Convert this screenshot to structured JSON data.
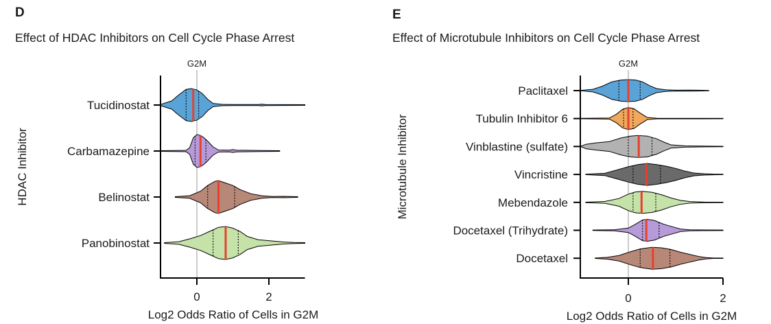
{
  "colors": {
    "median": "#e8402c",
    "reference_line": "#9a9a9a",
    "axis": "#000000"
  },
  "chart_data": [
    {
      "panel": "D",
      "type": "violin",
      "title": "Effect of HDAC Inhibitors on Cell Cycle Phase Arrest",
      "xlabel": "Log2 Odds Ratio of Cells in G2M",
      "ylabel": "HDAC Inhibitor",
      "reference_line": {
        "x": 0,
        "label": "G2M"
      },
      "xlim": [
        -1,
        3
      ],
      "xticks": [
        0,
        2
      ],
      "xtick_labels": [
        "0",
        "2"
      ],
      "grid": false,
      "series": [
        {
          "name": "Tucidinostat",
          "color": "#5aa3d6",
          "min": -1.0,
          "q1": -0.3,
          "median": -0.1,
          "q3": 0.05,
          "max": 3.0,
          "density": [
            [
              -1.0,
              0.04
            ],
            [
              -0.7,
              0.25
            ],
            [
              -0.5,
              0.62
            ],
            [
              -0.3,
              0.95
            ],
            [
              -0.15,
              1.0
            ],
            [
              0.0,
              0.92
            ],
            [
              0.15,
              0.7
            ],
            [
              0.3,
              0.35
            ],
            [
              0.45,
              0.1
            ],
            [
              0.7,
              0.04
            ],
            [
              1.0,
              0.03
            ],
            [
              1.7,
              0.03
            ],
            [
              1.8,
              0.05
            ],
            [
              1.9,
              0.03
            ],
            [
              3.0,
              0.02
            ]
          ]
        },
        {
          "name": "Carbamazepine",
          "color": "#b79bd8",
          "min": -1.0,
          "q1": -0.05,
          "median": 0.1,
          "q3": 0.25,
          "max": 2.3,
          "density": [
            [
              -1.0,
              0.02
            ],
            [
              -0.3,
              0.04
            ],
            [
              -0.2,
              0.2
            ],
            [
              -0.1,
              0.8
            ],
            [
              0.0,
              1.0
            ],
            [
              0.1,
              0.95
            ],
            [
              0.2,
              0.8
            ],
            [
              0.3,
              0.6
            ],
            [
              0.45,
              0.25
            ],
            [
              0.6,
              0.06
            ],
            [
              0.9,
              0.05
            ],
            [
              1.0,
              0.09
            ],
            [
              1.1,
              0.05
            ],
            [
              2.3,
              0.02
            ]
          ]
        },
        {
          "name": "Belinostat",
          "color": "#b78878",
          "min": -0.6,
          "q1": 0.3,
          "median": 0.6,
          "q3": 1.05,
          "max": 2.8,
          "density": [
            [
              -0.6,
              0.02
            ],
            [
              -0.2,
              0.08
            ],
            [
              0.1,
              0.35
            ],
            [
              0.3,
              0.7
            ],
            [
              0.5,
              0.95
            ],
            [
              0.6,
              1.0
            ],
            [
              0.8,
              0.85
            ],
            [
              1.0,
              0.7
            ],
            [
              1.2,
              0.45
            ],
            [
              1.5,
              0.2
            ],
            [
              1.8,
              0.08
            ],
            [
              2.1,
              0.03
            ],
            [
              2.4,
              0.04
            ],
            [
              2.8,
              0.02
            ]
          ]
        },
        {
          "name": "Panobinostat",
          "color": "#c5e2a9",
          "min": -0.9,
          "q1": 0.45,
          "median": 0.8,
          "q3": 1.15,
          "max": 3.0,
          "density": [
            [
              -0.9,
              0.02
            ],
            [
              -0.5,
              0.08
            ],
            [
              -0.2,
              0.25
            ],
            [
              0.1,
              0.45
            ],
            [
              0.4,
              0.75
            ],
            [
              0.6,
              0.95
            ],
            [
              0.8,
              1.0
            ],
            [
              1.0,
              0.9
            ],
            [
              1.2,
              0.7
            ],
            [
              1.4,
              0.4
            ],
            [
              1.7,
              0.2
            ],
            [
              2.1,
              0.12
            ],
            [
              2.4,
              0.06
            ],
            [
              2.7,
              0.03
            ],
            [
              3.0,
              0.02
            ]
          ]
        }
      ]
    },
    {
      "panel": "E",
      "type": "violin",
      "title": "Effect of Microtubule Inhibitors on Cell Cycle Phase Arrest",
      "xlabel": "Log2 Odds Ratio of Cells in G2M",
      "ylabel": "Microtubule Inhibitor",
      "reference_line": {
        "x": 0,
        "label": "G2M"
      },
      "xlim": [
        -1,
        2
      ],
      "xticks": [
        0,
        2
      ],
      "xtick_labels": [
        "0",
        "2"
      ],
      "grid": false,
      "series": [
        {
          "name": "Paclitaxel",
          "color": "#5aa3d6",
          "min": -1.0,
          "q1": -0.2,
          "median": 0.0,
          "q3": 0.25,
          "max": 1.7,
          "density": [
            [
              -1.0,
              0.02
            ],
            [
              -0.75,
              0.12
            ],
            [
              -0.55,
              0.4
            ],
            [
              -0.35,
              0.8
            ],
            [
              -0.15,
              0.97
            ],
            [
              0.0,
              1.0
            ],
            [
              0.15,
              0.97
            ],
            [
              0.3,
              0.8
            ],
            [
              0.45,
              0.45
            ],
            [
              0.6,
              0.18
            ],
            [
              0.8,
              0.07
            ],
            [
              1.0,
              0.04
            ],
            [
              1.3,
              0.05
            ],
            [
              1.7,
              0.02
            ]
          ]
        },
        {
          "name": "Tubulin Inhibitor 6",
          "color": "#f0a85e",
          "min": -1.0,
          "q1": -0.1,
          "median": 0.0,
          "q3": 0.1,
          "max": 2.0,
          "density": [
            [
              -1.0,
              0.02
            ],
            [
              -0.4,
              0.05
            ],
            [
              -0.25,
              0.4
            ],
            [
              -0.12,
              0.85
            ],
            [
              0.0,
              1.0
            ],
            [
              0.12,
              0.9
            ],
            [
              0.25,
              0.5
            ],
            [
              0.4,
              0.1
            ],
            [
              0.6,
              0.03
            ],
            [
              2.0,
              0.02
            ]
          ]
        },
        {
          "name": "Vinblastine (sulfate)",
          "color": "#b2b2b2",
          "min": -1.0,
          "q1": 0.0,
          "median": 0.22,
          "q3": 0.5,
          "max": 2.0,
          "density": [
            [
              -1.0,
              0.02
            ],
            [
              -0.9,
              0.2
            ],
            [
              -0.7,
              0.32
            ],
            [
              -0.4,
              0.45
            ],
            [
              -0.15,
              0.78
            ],
            [
              0.05,
              0.95
            ],
            [
              0.2,
              1.0
            ],
            [
              0.4,
              0.95
            ],
            [
              0.6,
              0.7
            ],
            [
              0.75,
              0.4
            ],
            [
              0.9,
              0.15
            ],
            [
              1.2,
              0.06
            ],
            [
              1.5,
              0.04
            ],
            [
              2.0,
              0.02
            ]
          ]
        },
        {
          "name": "Vincristine",
          "color": "#6a6a6a",
          "min": -0.9,
          "q1": 0.1,
          "median": 0.38,
          "q3": 0.68,
          "max": 2.0,
          "density": [
            [
              -0.9,
              0.02
            ],
            [
              -0.5,
              0.1
            ],
            [
              -0.25,
              0.4
            ],
            [
              0.0,
              0.7
            ],
            [
              0.2,
              0.9
            ],
            [
              0.4,
              1.0
            ],
            [
              0.6,
              0.9
            ],
            [
              0.8,
              0.75
            ],
            [
              1.0,
              0.55
            ],
            [
              1.2,
              0.3
            ],
            [
              1.4,
              0.12
            ],
            [
              1.6,
              0.06
            ],
            [
              1.8,
              0.03
            ],
            [
              2.0,
              0.02
            ]
          ]
        },
        {
          "name": "Mebendazole",
          "color": "#c5e2a9",
          "min": -0.9,
          "q1": 0.1,
          "median": 0.28,
          "q3": 0.58,
          "max": 2.0,
          "density": [
            [
              -0.9,
              0.02
            ],
            [
              -0.5,
              0.08
            ],
            [
              -0.2,
              0.35
            ],
            [
              0.0,
              0.75
            ],
            [
              0.15,
              0.95
            ],
            [
              0.3,
              1.0
            ],
            [
              0.5,
              0.92
            ],
            [
              0.7,
              0.7
            ],
            [
              0.9,
              0.4
            ],
            [
              1.1,
              0.18
            ],
            [
              1.3,
              0.07
            ],
            [
              1.6,
              0.03
            ],
            [
              2.0,
              0.02
            ]
          ]
        },
        {
          "name": "Docetaxel (Trihydrate)",
          "color": "#b79bd8",
          "min": -0.75,
          "q1": 0.3,
          "median": 0.38,
          "q3": 0.65,
          "max": 2.0,
          "density": [
            [
              -0.75,
              0.02
            ],
            [
              -0.3,
              0.05
            ],
            [
              0.0,
              0.2
            ],
            [
              0.15,
              0.55
            ],
            [
              0.3,
              0.95
            ],
            [
              0.4,
              1.0
            ],
            [
              0.55,
              0.9
            ],
            [
              0.75,
              0.55
            ],
            [
              0.95,
              0.3
            ],
            [
              1.1,
              0.12
            ],
            [
              1.3,
              0.05
            ],
            [
              1.6,
              0.03
            ],
            [
              2.0,
              0.02
            ]
          ]
        },
        {
          "name": "Docetaxel",
          "color": "#b78878",
          "min": -0.7,
          "q1": 0.25,
          "median": 0.52,
          "q3": 0.88,
          "max": 2.0,
          "density": [
            [
              -0.7,
              0.02
            ],
            [
              -0.45,
              0.08
            ],
            [
              -0.2,
              0.25
            ],
            [
              0.05,
              0.6
            ],
            [
              0.25,
              0.85
            ],
            [
              0.5,
              1.0
            ],
            [
              0.7,
              0.95
            ],
            [
              0.9,
              0.8
            ],
            [
              1.1,
              0.55
            ],
            [
              1.3,
              0.35
            ],
            [
              1.5,
              0.15
            ],
            [
              1.65,
              0.06
            ],
            [
              1.8,
              0.02
            ],
            [
              2.0,
              0.02
            ]
          ]
        }
      ]
    }
  ]
}
